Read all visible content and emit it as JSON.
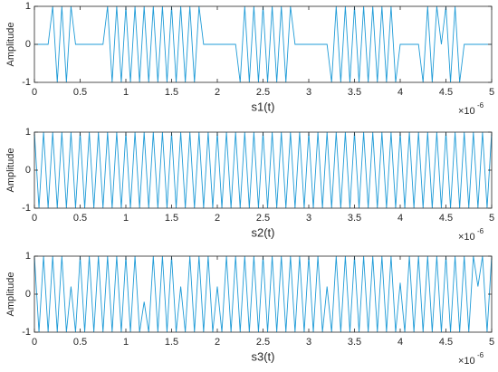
{
  "chart_data": [
    {
      "type": "line",
      "xlabel": "s1(t)",
      "ylabel": "Amplitude",
      "x_exponent": {
        "base": "×10",
        "power": "-6"
      },
      "color": "#1f9bd7",
      "xlim": [
        0,
        5
      ],
      "xticks": [
        0,
        0.5,
        1,
        1.5,
        2,
        2.5,
        3,
        3.5,
        4,
        4.5,
        5
      ],
      "ylim": [
        -1,
        1
      ],
      "yticks": [
        -1,
        0,
        1
      ],
      "x": [
        0,
        0.05,
        0.1,
        0.15,
        0.2,
        0.25,
        0.3,
        0.35,
        0.4,
        0.45,
        0.5,
        0.55,
        0.6,
        0.65,
        0.7,
        0.75,
        0.8,
        0.85,
        0.9,
        0.95,
        1,
        1.05,
        1.1,
        1.15,
        1.2,
        1.25,
        1.3,
        1.35,
        1.4,
        1.45,
        1.5,
        1.55,
        1.6,
        1.65,
        1.7,
        1.75,
        1.8,
        1.85,
        1.9,
        1.95,
        2,
        2.05,
        2.1,
        2.15,
        2.2,
        2.25,
        2.3,
        2.35,
        2.4,
        2.45,
        2.5,
        2.55,
        2.6,
        2.65,
        2.7,
        2.75,
        2.8,
        2.85,
        2.9,
        2.95,
        3,
        3.05,
        3.1,
        3.15,
        3.2,
        3.25,
        3.3,
        3.35,
        3.4,
        3.45,
        3.5,
        3.55,
        3.6,
        3.65,
        3.7,
        3.75,
        3.8,
        3.85,
        3.9,
        3.95,
        4,
        4.05,
        4.1,
        4.15,
        4.2,
        4.25,
        4.3,
        4.35,
        4.4,
        4.45,
        4.5,
        4.55,
        4.6,
        4.65,
        4.7,
        4.75,
        4.8,
        4.85,
        4.9,
        4.95,
        5
      ],
      "values": [
        0,
        0,
        0,
        0,
        1,
        -1,
        1,
        -1,
        1,
        0,
        0,
        0,
        0,
        0,
        0,
        0,
        1,
        -1,
        1,
        -1,
        1,
        -1,
        1,
        -1,
        1,
        -1,
        1,
        -1,
        1,
        -1,
        1,
        -1,
        1,
        -1,
        1,
        -1,
        1,
        0,
        0,
        0,
        0,
        0,
        0,
        0,
        0,
        -1,
        1,
        -1,
        1,
        -1,
        1,
        -1,
        1,
        -1,
        1,
        -1,
        1,
        0,
        0,
        0,
        0,
        0,
        0,
        0,
        0,
        -1,
        1,
        -1,
        1,
        -1,
        1,
        -1,
        1,
        -1,
        1,
        -1,
        1,
        -1,
        1,
        -1,
        0,
        0,
        0,
        0,
        0,
        -1,
        1,
        -1,
        1,
        0,
        1,
        -1,
        1,
        -1,
        0,
        0,
        0,
        0,
        0,
        0,
        0
      ]
    },
    {
      "type": "line",
      "xlabel": "s2(t)",
      "ylabel": "Amplitude",
      "x_exponent": {
        "base": "×10",
        "power": "-6"
      },
      "color": "#1f9bd7",
      "xlim": [
        0,
        5
      ],
      "xticks": [
        0,
        0.5,
        1,
        1.5,
        2,
        2.5,
        3,
        3.5,
        4,
        4.5,
        5
      ],
      "ylim": [
        -1,
        1
      ],
      "yticks": [
        -1,
        0,
        1
      ],
      "x": [
        0,
        0.05,
        0.1,
        0.15,
        0.2,
        0.25,
        0.3,
        0.35,
        0.4,
        0.45,
        0.5,
        0.55,
        0.6,
        0.65,
        0.7,
        0.75,
        0.8,
        0.85,
        0.9,
        0.95,
        1,
        1.05,
        1.1,
        1.15,
        1.2,
        1.25,
        1.3,
        1.35,
        1.4,
        1.45,
        1.5,
        1.55,
        1.6,
        1.65,
        1.7,
        1.75,
        1.8,
        1.85,
        1.9,
        1.95,
        2,
        2.05,
        2.1,
        2.15,
        2.2,
        2.25,
        2.3,
        2.35,
        2.4,
        2.45,
        2.5,
        2.55,
        2.6,
        2.65,
        2.7,
        2.75,
        2.8,
        2.85,
        2.9,
        2.95,
        3,
        3.05,
        3.1,
        3.15,
        3.2,
        3.25,
        3.3,
        3.35,
        3.4,
        3.45,
        3.5,
        3.55,
        3.6,
        3.65,
        3.7,
        3.75,
        3.8,
        3.85,
        3.9,
        3.95,
        4,
        4.05,
        4.1,
        4.15,
        4.2,
        4.25,
        4.3,
        4.35,
        4.4,
        4.45,
        4.5,
        4.55,
        4.6,
        4.65,
        4.7,
        4.75,
        4.8,
        4.85,
        4.9,
        4.95,
        5
      ],
      "values": [
        1,
        -1,
        1,
        -1,
        1,
        -1,
        1,
        -1,
        1,
        -1,
        1,
        -1,
        1,
        -1,
        1,
        -1,
        1,
        -1,
        1,
        -1,
        1,
        -1,
        1,
        -1,
        1,
        -1,
        1,
        -1,
        1,
        -1,
        1,
        -1,
        1,
        -1,
        1,
        -1,
        1,
        -1,
        1,
        -1,
        1,
        -1,
        1,
        -1,
        1,
        -1,
        1,
        -1,
        1,
        -1,
        1,
        -1,
        1,
        -1,
        1,
        -1,
        1,
        -1,
        1,
        -1,
        1,
        -1,
        1,
        -1,
        1,
        -1,
        1,
        -1,
        1,
        -1,
        1,
        -1,
        1,
        -1,
        1,
        -1,
        1,
        -1,
        1,
        -1,
        1,
        -1,
        1,
        -1,
        1,
        -1,
        1,
        -1,
        1,
        -1,
        1,
        -1,
        1,
        -1,
        1,
        -1,
        1,
        -1,
        1,
        -1,
        1
      ]
    },
    {
      "type": "line",
      "xlabel": "s3(t)",
      "ylabel": "Amplitude",
      "x_exponent": {
        "base": "×10",
        "power": "-6"
      },
      "color": "#1f9bd7",
      "xlim": [
        0,
        5
      ],
      "xticks": [
        0,
        0.5,
        1,
        1.5,
        2,
        2.5,
        3,
        3.5,
        4,
        4.5,
        5
      ],
      "ylim": [
        -1,
        1
      ],
      "yticks": [
        -1,
        0,
        1
      ],
      "x": [
        0,
        0.05,
        0.1,
        0.15,
        0.2,
        0.25,
        0.3,
        0.35,
        0.4,
        0.45,
        0.5,
        0.55,
        0.6,
        0.65,
        0.7,
        0.75,
        0.8,
        0.85,
        0.9,
        0.95,
        1,
        1.05,
        1.1,
        1.15,
        1.2,
        1.25,
        1.3,
        1.35,
        1.4,
        1.45,
        1.5,
        1.55,
        1.6,
        1.65,
        1.7,
        1.75,
        1.8,
        1.85,
        1.9,
        1.95,
        2,
        2.05,
        2.1,
        2.15,
        2.2,
        2.25,
        2.3,
        2.35,
        2.4,
        2.45,
        2.5,
        2.55,
        2.6,
        2.65,
        2.7,
        2.75,
        2.8,
        2.85,
        2.9,
        2.95,
        3,
        3.05,
        3.1,
        3.15,
        3.2,
        3.25,
        3.3,
        3.35,
        3.4,
        3.45,
        3.5,
        3.55,
        3.6,
        3.65,
        3.7,
        3.75,
        3.8,
        3.85,
        3.9,
        3.95,
        4,
        4.05,
        4.1,
        4.15,
        4.2,
        4.25,
        4.3,
        4.35,
        4.4,
        4.45,
        4.5,
        4.55,
        4.6,
        4.65,
        4.7,
        4.75,
        4.8,
        4.85,
        4.9,
        4.95,
        5
      ],
      "values": [
        1,
        -1,
        1,
        -1,
        1,
        -1,
        1,
        -1,
        0.2,
        -1,
        1,
        -1,
        1,
        -1,
        1,
        -1,
        1,
        -1,
        1,
        -1,
        1,
        -1,
        1,
        -1,
        -0.2,
        -1,
        1,
        -1,
        1,
        -1,
        1,
        -1,
        0.2,
        -1,
        1,
        -1,
        1,
        -1,
        1,
        -1,
        0.2,
        -1,
        1,
        -1,
        1,
        -1,
        1,
        -1,
        1,
        -1,
        1,
        -1,
        1,
        -1,
        1,
        -1,
        1,
        -1,
        1,
        -1,
        1,
        -1,
        1,
        -1,
        0.2,
        -1,
        1,
        -1,
        1,
        -1,
        1,
        -1,
        1,
        -1,
        1,
        -1,
        1,
        -1,
        1,
        -1,
        0.3,
        -1,
        1,
        -1,
        1,
        -1,
        1,
        -1,
        1,
        -1,
        1,
        -1,
        1,
        -1,
        1,
        -1,
        1,
        0.2,
        1,
        -1,
        1
      ]
    }
  ]
}
